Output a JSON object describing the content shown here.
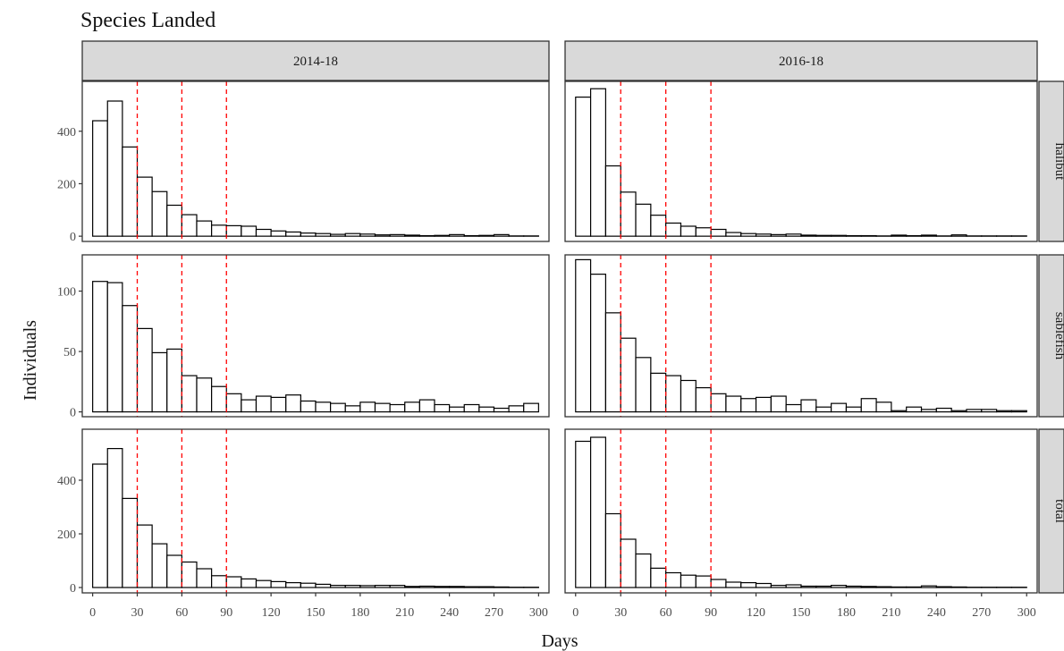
{
  "chart_data": {
    "type": "bar",
    "title": "Species Landed",
    "xlabel": "Days",
    "ylabel": "Individuals",
    "bin_width": 10,
    "bin_starts": [
      0,
      10,
      20,
      30,
      40,
      50,
      60,
      70,
      80,
      90,
      100,
      110,
      120,
      130,
      140,
      150,
      160,
      170,
      180,
      190,
      200,
      210,
      220,
      230,
      240,
      250,
      260,
      270,
      280,
      290
    ],
    "xlim": [
      -7,
      307
    ],
    "x_ticks": [
      0,
      30,
      60,
      90,
      120,
      150,
      180,
      210,
      240,
      270,
      300
    ],
    "reference_lines_x": [
      30,
      60,
      90
    ],
    "reference_line_color": "#ff0000",
    "bar_fill": "#ffffff",
    "bar_stroke": "#000000",
    "columns": [
      "2014-18",
      "2016-18"
    ],
    "rows": [
      {
        "label": "halibut",
        "ylim": [
          -20,
          590
        ],
        "y_ticks": [
          0,
          200,
          400
        ]
      },
      {
        "label": "sablefish",
        "ylim": [
          -4,
          130
        ],
        "y_ticks": [
          0,
          50,
          100
        ]
      },
      {
        "label": "total",
        "ylim": [
          -20,
          590
        ],
        "y_ticks": [
          0,
          200,
          400
        ]
      }
    ],
    "panels": [
      {
        "column": "2014-18",
        "row": "halibut",
        "values": [
          440,
          515,
          340,
          225,
          170,
          118,
          82,
          58,
          42,
          40,
          38,
          26,
          20,
          16,
          12,
          10,
          7,
          10,
          8,
          5,
          6,
          4,
          2,
          3,
          6,
          2,
          3,
          6,
          1,
          1
        ]
      },
      {
        "column": "2016-18",
        "row": "halibut",
        "values": [
          530,
          562,
          268,
          168,
          122,
          80,
          50,
          38,
          32,
          26,
          14,
          10,
          8,
          6,
          8,
          4,
          3,
          3,
          2,
          2,
          1,
          4,
          2,
          4,
          1,
          5,
          1,
          1,
          1,
          1
        ]
      },
      {
        "column": "2014-18",
        "row": "sablefish",
        "values": [
          108,
          107,
          88,
          69,
          49,
          52,
          30,
          28,
          21,
          15,
          10,
          13,
          12,
          14,
          9,
          8,
          7,
          5,
          8,
          7,
          6,
          8,
          10,
          6,
          4,
          6,
          4,
          3,
          5,
          7
        ]
      },
      {
        "column": "2016-18",
        "row": "sablefish",
        "values": [
          126,
          114,
          82,
          61,
          45,
          32,
          30,
          26,
          20,
          15,
          13,
          11,
          12,
          13,
          6,
          10,
          4,
          7,
          4,
          11,
          8,
          1,
          4,
          2,
          3,
          1,
          2,
          2,
          1,
          1
        ]
      },
      {
        "column": "2014-18",
        "row": "total",
        "values": [
          460,
          518,
          332,
          233,
          163,
          120,
          95,
          70,
          44,
          40,
          32,
          26,
          22,
          18,
          16,
          12,
          8,
          8,
          7,
          8,
          8,
          4,
          5,
          4,
          4,
          3,
          3,
          2,
          1,
          1
        ]
      },
      {
        "column": "2016-18",
        "row": "total",
        "values": [
          545,
          560,
          275,
          180,
          125,
          72,
          55,
          46,
          43,
          30,
          20,
          18,
          15,
          8,
          10,
          5,
          5,
          8,
          5,
          4,
          3,
          2,
          2,
          6,
          3,
          2,
          1,
          1,
          1,
          1
        ]
      }
    ]
  }
}
